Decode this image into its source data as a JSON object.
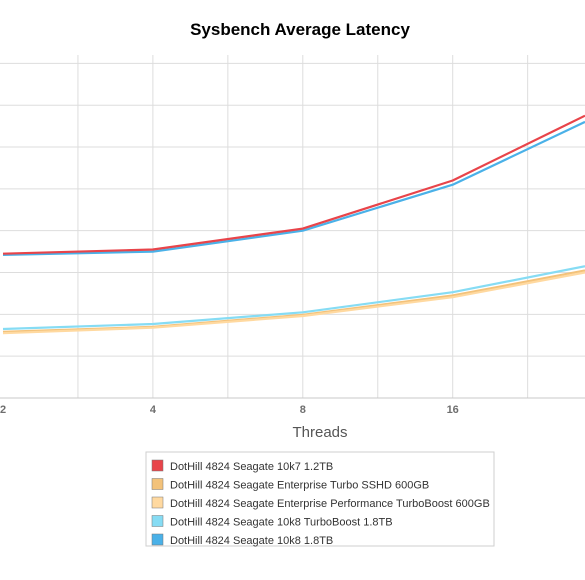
{
  "chart_data": {
    "type": "line",
    "title": "Sysbench Average Latency",
    "xlabel": "Threads",
    "ylabel": "",
    "x": [
      2,
      4,
      8,
      16
    ],
    "x_ticks": [
      "2",
      "4",
      "8",
      "16"
    ],
    "x_scale": "log2",
    "xlim": [
      2,
      29.5
    ],
    "ylim": [
      0,
      8.2
    ],
    "y_gridlines": [
      1,
      2,
      3,
      4,
      5,
      6,
      7,
      8
    ],
    "grid": true,
    "legend_position": "bottom",
    "series": [
      {
        "name": "DotHill 4824 Seagate 10k7 1.2TB",
        "color": "#e8444a",
        "x": [
          2,
          4,
          8,
          16,
          29.5
        ],
        "values": [
          3.45,
          3.55,
          4.05,
          5.2,
          6.75
        ]
      },
      {
        "name": "DotHill 4824 Seagate Enterprise Turbo SSHD 600GB",
        "color": "#f3c27a",
        "x": [
          2,
          4,
          8,
          16,
          29.5
        ],
        "values": [
          1.58,
          1.7,
          1.99,
          2.45,
          3.05
        ]
      },
      {
        "name": "DotHill 4824 Seagate Enterprise Performance TurboBoost 600GB",
        "color": "#ffd9a0",
        "x": [
          2,
          4,
          8,
          16,
          29.5
        ],
        "values": [
          1.55,
          1.68,
          1.96,
          2.41,
          3.0
        ]
      },
      {
        "name": "DotHill 4824 Seagate 10k8 TurboBoost 1.8TB",
        "color": "#86dcf4",
        "x": [
          2,
          4,
          8,
          16,
          29.5
        ],
        "values": [
          1.65,
          1.77,
          2.05,
          2.53,
          3.15
        ]
      },
      {
        "name": "DotHill 4824 Seagate 10k8 1.8TB",
        "color": "#4ab1e8",
        "x": [
          2,
          4,
          8,
          16,
          29.5
        ],
        "values": [
          3.42,
          3.5,
          4.0,
          5.1,
          6.6
        ]
      }
    ]
  }
}
